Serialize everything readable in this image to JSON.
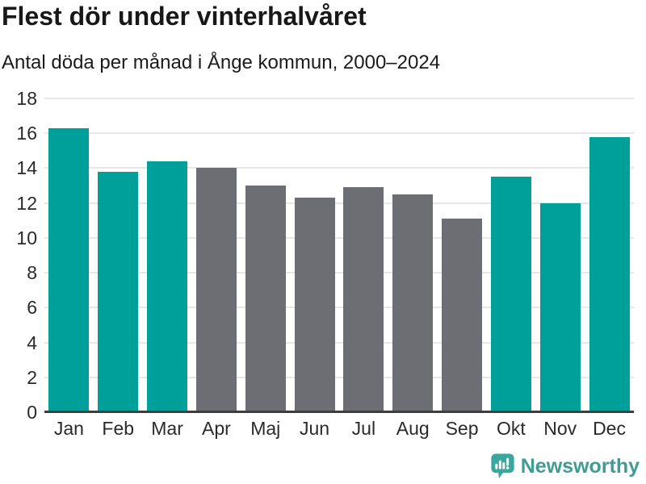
{
  "header": {
    "title": "Flest dör under vinterhalvåret",
    "subtitle": "Antal döda per månad i Ånge kommun, 2000–2024"
  },
  "chart_data": {
    "type": "bar",
    "title": "Flest dör under vinterhalvåret",
    "subtitle": "Antal döda per månad i Ånge kommun, 2000–2024",
    "categories": [
      "Jan",
      "Feb",
      "Mar",
      "Apr",
      "Maj",
      "Jun",
      "Jul",
      "Aug",
      "Sep",
      "Okt",
      "Nov",
      "Dec"
    ],
    "values": [
      16.3,
      13.8,
      14.4,
      14.0,
      13.0,
      12.3,
      12.9,
      12.5,
      11.1,
      13.5,
      12.0,
      15.8
    ],
    "bar_colors": [
      "teal",
      "teal",
      "teal",
      "gray",
      "gray",
      "gray",
      "gray",
      "gray",
      "gray",
      "teal",
      "teal",
      "teal"
    ],
    "palette": {
      "teal": "#00a09a",
      "gray": "#6d6d74"
    },
    "xlabel": "",
    "ylabel": "",
    "ylim": [
      0,
      18
    ],
    "ytick_step": 2,
    "yticks": [
      0,
      2,
      4,
      6,
      8,
      10,
      12,
      14,
      16,
      18
    ],
    "grid": true,
    "gridline_color": "#e7e7e7",
    "axis_line_color": "#3d3d3d",
    "legend": "none"
  },
  "footer": {
    "brand": "Newsworthy",
    "brand_color": "#3e9c94",
    "logo_color": "#3ba79c"
  }
}
